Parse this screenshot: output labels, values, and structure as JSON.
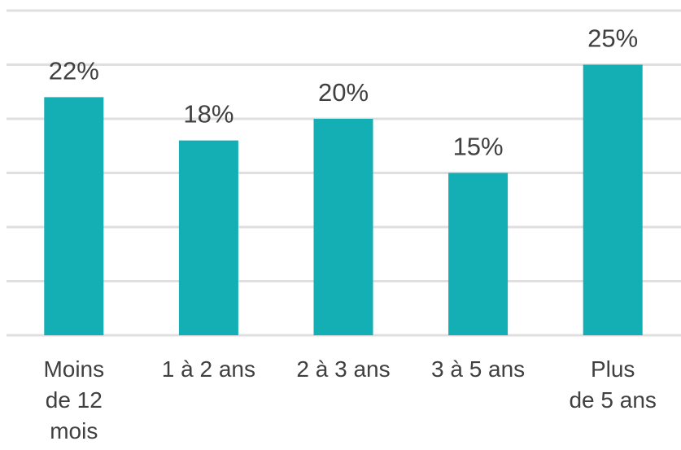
{
  "chart_data": {
    "type": "bar",
    "categories": [
      [
        "Moins",
        "de 12",
        "mois"
      ],
      [
        "1 à 2 ans"
      ],
      [
        "2 à 3 ans"
      ],
      [
        "3 à 5 ans"
      ],
      [
        "Plus",
        "de 5 ans"
      ]
    ],
    "values": [
      22,
      18,
      20,
      15,
      25
    ],
    "data_labels": [
      "22%",
      "18%",
      "20%",
      "15%",
      "25%"
    ],
    "value_unit": "%",
    "ylim": [
      0,
      30
    ],
    "y_gridline_step": 5,
    "grid": true,
    "legend": "none",
    "bar_color": "#14AEB5",
    "grid_color": "#E0DEDE",
    "text_color": "#404040"
  }
}
